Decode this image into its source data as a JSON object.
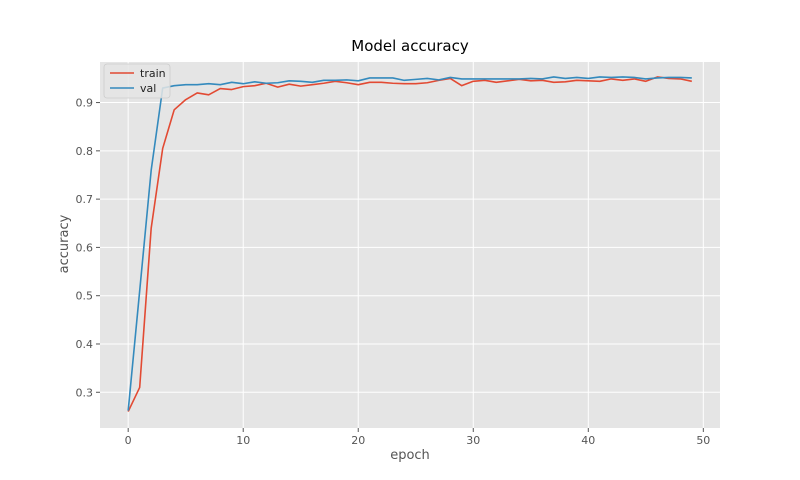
{
  "chart_data": {
    "type": "line",
    "title": "Model accuracy",
    "xlabel": "epoch",
    "ylabel": "accuracy",
    "xlim": [
      -2.45,
      51.45
    ],
    "ylim": [
      0.226,
      0.984
    ],
    "xticks": [
      0,
      10,
      20,
      30,
      40,
      50
    ],
    "yticks": [
      0.3,
      0.4,
      0.5,
      0.6,
      0.7,
      0.8,
      0.9
    ],
    "grid": true,
    "legend": {
      "position": "top-left"
    },
    "x": [
      0,
      1,
      2,
      3,
      4,
      5,
      6,
      7,
      8,
      9,
      10,
      11,
      12,
      13,
      14,
      15,
      16,
      17,
      18,
      19,
      20,
      21,
      22,
      23,
      24,
      25,
      26,
      27,
      28,
      29,
      30,
      31,
      32,
      33,
      34,
      35,
      36,
      37,
      38,
      39,
      40,
      41,
      42,
      43,
      44,
      45,
      46,
      47,
      48,
      49
    ],
    "series": [
      {
        "name": "train",
        "color": "#e24a33",
        "values": [
          0.26,
          0.31,
          0.64,
          0.805,
          0.885,
          0.906,
          0.92,
          0.916,
          0.929,
          0.927,
          0.933,
          0.935,
          0.94,
          0.932,
          0.938,
          0.934,
          0.937,
          0.94,
          0.944,
          0.941,
          0.937,
          0.942,
          0.942,
          0.94,
          0.939,
          0.939,
          0.941,
          0.946,
          0.95,
          0.935,
          0.944,
          0.946,
          0.942,
          0.945,
          0.948,
          0.945,
          0.946,
          0.942,
          0.943,
          0.946,
          0.945,
          0.944,
          0.949,
          0.946,
          0.949,
          0.944,
          0.953,
          0.95,
          0.949,
          0.944
        ]
      },
      {
        "name": "val",
        "color": "#348abd",
        "values": [
          0.262,
          0.51,
          0.76,
          0.93,
          0.935,
          0.937,
          0.937,
          0.939,
          0.937,
          0.942,
          0.939,
          0.943,
          0.94,
          0.941,
          0.945,
          0.944,
          0.942,
          0.946,
          0.946,
          0.947,
          0.945,
          0.951,
          0.951,
          0.951,
          0.946,
          0.948,
          0.95,
          0.947,
          0.952,
          0.949,
          0.949,
          0.949,
          0.949,
          0.949,
          0.949,
          0.95,
          0.949,
          0.953,
          0.95,
          0.952,
          0.95,
          0.953,
          0.952,
          0.953,
          0.952,
          0.949,
          0.951,
          0.952,
          0.952,
          0.951
        ]
      }
    ]
  }
}
